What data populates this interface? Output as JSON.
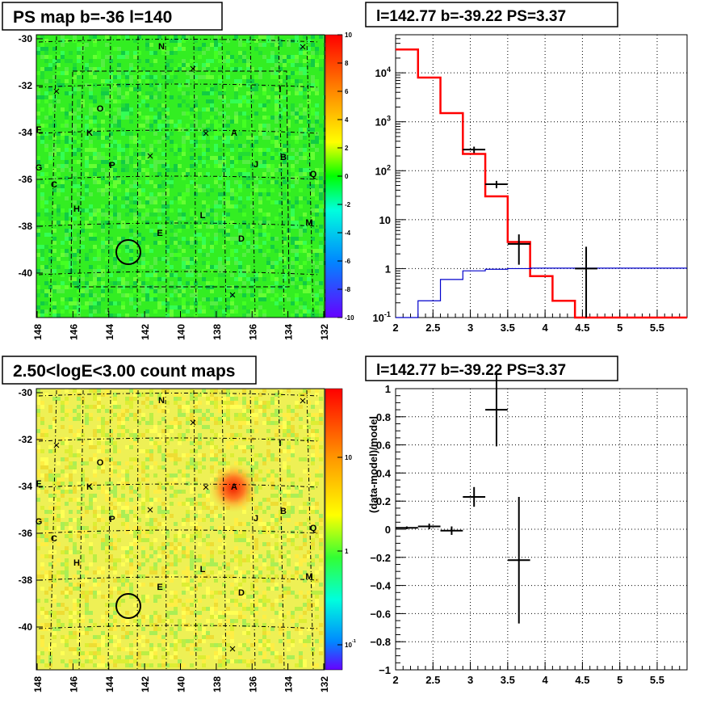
{
  "panels": {
    "top_left_title": "PS map b=-36 l=140",
    "top_right_title": "l=142.77 b=-39.22 PS=3.37",
    "bottom_left_title": "2.50<logE<3.00 count maps",
    "bottom_right_title": "l=142.77 b=-39.22 PS=3.37"
  },
  "map_axes": {
    "x_ticks": [
      "148",
      "146",
      "144",
      "142",
      "140",
      "138",
      "136",
      "134",
      "132"
    ],
    "y_ticks": [
      "-30",
      "-32",
      "-34",
      "-36",
      "-38",
      "-40"
    ]
  },
  "source_labels": [
    {
      "label": "N",
      "x": 200,
      "y": 61
    },
    {
      "label": "I",
      "x": 347,
      "y": 114
    },
    {
      "label": "O",
      "x": 124,
      "y": 138
    },
    {
      "label": "F",
      "x": 48,
      "y": 164
    },
    {
      "label": "K",
      "x": 111,
      "y": 168
    },
    {
      "label": "A",
      "x": 290,
      "y": 168
    },
    {
      "label": "B",
      "x": 351,
      "y": 198
    },
    {
      "label": "G",
      "x": 48,
      "y": 211
    },
    {
      "label": "P",
      "x": 139,
      "y": 208
    },
    {
      "label": "J",
      "x": 317,
      "y": 207
    },
    {
      "label": "Q",
      "x": 388,
      "y": 219
    },
    {
      "label": "C",
      "x": 67,
      "y": 232
    },
    {
      "label": "H",
      "x": 95,
      "y": 262
    },
    {
      "label": "L",
      "x": 251,
      "y": 270
    },
    {
      "label": "M",
      "x": 383,
      "y": 279
    },
    {
      "label": "E",
      "x": 198,
      "y": 292
    },
    {
      "label": "D",
      "x": 299,
      "y": 299
    }
  ],
  "colorbar_top": {
    "ticks": [
      "10",
      "8",
      "6",
      "4",
      "2",
      "0",
      "-2",
      "-4",
      "-6",
      "-8",
      "-10"
    ]
  },
  "colorbar_bottom": {
    "ticks": [
      "10",
      "1",
      "10^-1"
    ]
  },
  "chart_data": [
    {
      "type": "line",
      "title": "l=142.77 b=-39.22 PS=3.37",
      "xlabel": "",
      "ylabel": "",
      "xlim": [
        2,
        5.9
      ],
      "ylim": [
        0.1,
        60000
      ],
      "yscale": "log",
      "x_ticks": [
        "2",
        "2.5",
        "3",
        "3.5",
        "4",
        "4.5",
        "5",
        "5.5"
      ],
      "y_ticks": [
        "10^-1",
        "1",
        "10",
        "10^2",
        "10^3",
        "10^4"
      ],
      "grid": true,
      "series": [
        {
          "name": "",
          "color": "#ff0000",
          "edges": [
            2.0,
            2.3,
            2.6,
            2.9,
            3.2,
            3.5,
            3.8,
            4.1,
            4.4,
            4.7,
            5.0,
            5.3,
            5.9
          ],
          "values": [
            30000,
            8000,
            1500,
            220,
            30,
            3.5,
            0.7,
            0.22,
            0.1,
            0.1,
            0.1,
            0.1
          ]
        },
        {
          "name": "",
          "color": "#0000cc",
          "edges": [
            2.0,
            2.3,
            2.6,
            2.9,
            3.2,
            3.5,
            3.8,
            4.1,
            4.4,
            4.7,
            5.0,
            5.3,
            5.9
          ],
          "values": [
            0.1,
            0.22,
            0.6,
            0.9,
            0.97,
            1.0,
            1.02,
            1.02,
            1.02,
            1.02,
            1.02,
            1.02
          ]
        },
        {
          "name": "",
          "color": "#000000",
          "points": [
            {
              "x": 3.05,
              "y": 270,
              "xerr": 0.15,
              "ylo": 230,
              "yhi": 310
            },
            {
              "x": 3.35,
              "y": 53,
              "xerr": 0.15,
              "ylo": 44,
              "yhi": 62
            },
            {
              "x": 3.65,
              "y": 3.2,
              "xerr": 0.15,
              "ylo": 1.2,
              "yhi": 5.0
            },
            {
              "x": 4.55,
              "y": 1.0,
              "xerr": 0.15,
              "ylo": 0.1,
              "yhi": 2.8
            }
          ]
        }
      ]
    },
    {
      "type": "scatter",
      "title": "l=142.77 b=-39.22 PS=3.37",
      "xlabel": "",
      "ylabel": "(data-model)/model",
      "xlim": [
        2,
        5.9
      ],
      "ylim": [
        -1,
        1
      ],
      "x_ticks": [
        "2",
        "2.5",
        "3",
        "3.5",
        "4",
        "4.5",
        "5",
        "5.5"
      ],
      "y_ticks": [
        "−1",
        "−0.8",
        "−0.6",
        "−0.4",
        "−0.2",
        "0",
        "0.2",
        "0.4",
        "0.6",
        "0.8",
        "1"
      ],
      "grid": true,
      "series": [
        {
          "name": "",
          "color": "#000000",
          "points": [
            {
              "x": 2.15,
              "y": 0.01,
              "xerr": 0.15,
              "err": 0.01
            },
            {
              "x": 2.45,
              "y": 0.02,
              "xerr": 0.15,
              "err": 0.02
            },
            {
              "x": 2.75,
              "y": -0.01,
              "xerr": 0.15,
              "err": 0.03
            },
            {
              "x": 3.05,
              "y": 0.23,
              "xerr": 0.15,
              "err": 0.07
            },
            {
              "x": 3.35,
              "y": 0.85,
              "xerr": 0.15,
              "err": 0.26
            },
            {
              "x": 3.65,
              "y": -0.22,
              "xerr": 0.15,
              "err": 0.45
            }
          ]
        }
      ]
    }
  ]
}
